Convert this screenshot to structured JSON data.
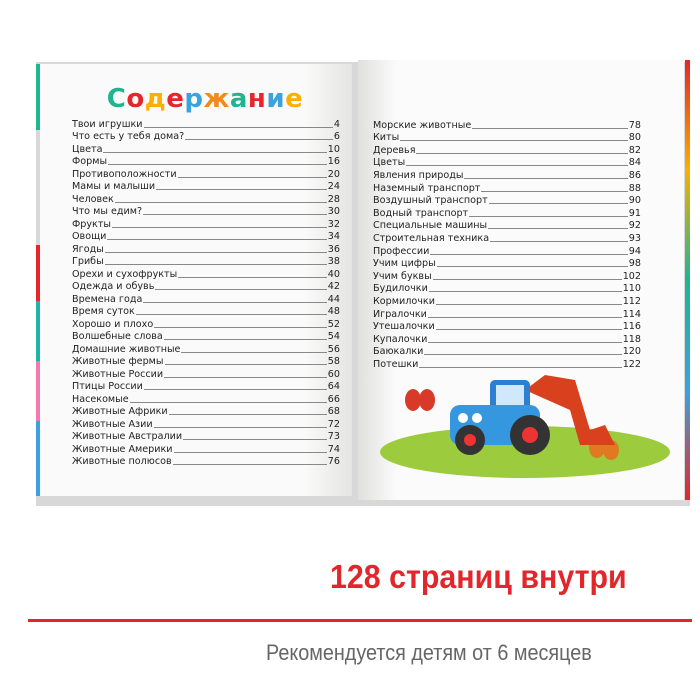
{
  "book": {
    "title": "Содержание",
    "title_colors": [
      "#1fb58f",
      "#e5262b",
      "#f9b000",
      "#e5262b",
      "#3aa3dd",
      "#f08a1c",
      "#1fb58f",
      "#e5262b",
      "#3aa3dd",
      "#f9b000"
    ],
    "left_toc": [
      {
        "label": "Твои игрушки",
        "page": "4"
      },
      {
        "label": "Что есть у тебя дома?",
        "page": "6"
      },
      {
        "label": "Цвета",
        "page": "10"
      },
      {
        "label": "Формы",
        "page": "16"
      },
      {
        "label": "Противоположности",
        "page": "20"
      },
      {
        "label": "Мамы и малыши",
        "page": "24"
      },
      {
        "label": "Человек",
        "page": "28"
      },
      {
        "label": "Что мы едим?",
        "page": "30"
      },
      {
        "label": "Фрукты",
        "page": "32"
      },
      {
        "label": "Овощи",
        "page": "34"
      },
      {
        "label": "Ягоды",
        "page": "36"
      },
      {
        "label": "Грибы",
        "page": "38"
      },
      {
        "label": "Орехи и сухофрукты",
        "page": "40"
      },
      {
        "label": "Одежда и обувь",
        "page": "42"
      },
      {
        "label": "Времена года",
        "page": "44"
      },
      {
        "label": "Время суток",
        "page": "48"
      },
      {
        "label": "Хорошо и плохо",
        "page": "52"
      },
      {
        "label": "Волшебные слова",
        "page": "54"
      },
      {
        "label": "Домашние животные",
        "page": "56"
      },
      {
        "label": "Животные фермы",
        "page": "58"
      },
      {
        "label": "Животные России",
        "page": "60"
      },
      {
        "label": "Птицы России",
        "page": "64"
      },
      {
        "label": "Насекомые",
        "page": "66"
      },
      {
        "label": "Животные Африки",
        "page": "68"
      },
      {
        "label": "Животные Азии",
        "page": "72"
      },
      {
        "label": "Животные Австралии",
        "page": "73"
      },
      {
        "label": "Животные Америки",
        "page": "74"
      },
      {
        "label": "Животные полюсов",
        "page": "76"
      }
    ],
    "right_toc": [
      {
        "label": "Морские животные",
        "page": "78"
      },
      {
        "label": "Киты",
        "page": "80"
      },
      {
        "label": "Деревья",
        "page": "82"
      },
      {
        "label": "Цветы",
        "page": "84"
      },
      {
        "label": "Явления природы",
        "page": "86"
      },
      {
        "label": "Наземный транспорт",
        "page": "88"
      },
      {
        "label": "Воздушный транспорт",
        "page": "90"
      },
      {
        "label": "Водный транспорт",
        "page": "91"
      },
      {
        "label": "Специальные машины",
        "page": "92"
      },
      {
        "label": "Строительная техника",
        "page": "93"
      },
      {
        "label": "Профессии",
        "page": "94"
      },
      {
        "label": "Учим цифры",
        "page": "98"
      },
      {
        "label": "Учим буквы",
        "page": "102"
      },
      {
        "label": "Будилочки",
        "page": "110"
      },
      {
        "label": "Кормилочки",
        "page": "112"
      },
      {
        "label": "Игралочки",
        "page": "114"
      },
      {
        "label": "Утешалочки",
        "page": "116"
      },
      {
        "label": "Купалочки",
        "page": "118"
      },
      {
        "label": "Баюкалки",
        "page": "120"
      },
      {
        "label": "Потешки",
        "page": "122"
      }
    ]
  },
  "banner": {
    "headline": "128 страниц внутри",
    "subtitle": "Рекомендуется детям от 6 месяцев",
    "accent": "#e3262b"
  }
}
